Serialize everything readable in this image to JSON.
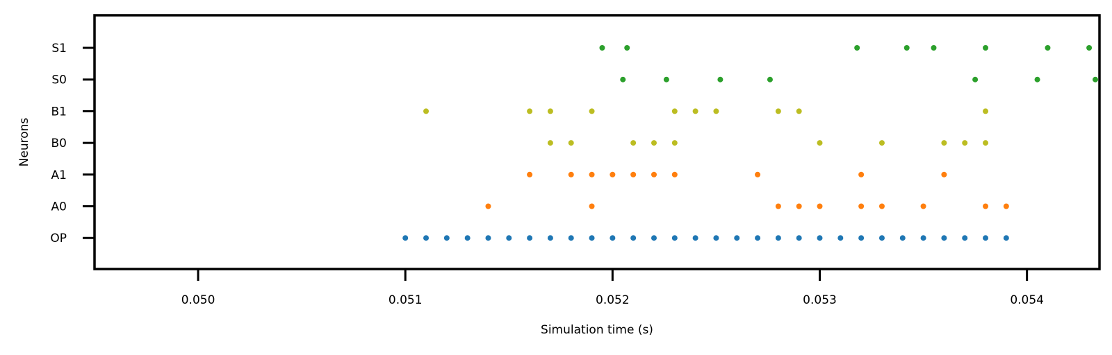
{
  "chart_data": {
    "type": "scatter",
    "title": "",
    "xlabel": "Simulation time (s)",
    "ylabel": "Neurons",
    "xlim": [
      0.0495,
      0.05435
    ],
    "x_ticks": [
      0.05,
      0.051,
      0.052,
      0.053,
      0.054
    ],
    "x_tick_labels": [
      "0.050",
      "0.051",
      "0.052",
      "0.053",
      "0.054"
    ],
    "categories": [
      "OP",
      "A0",
      "A1",
      "B0",
      "B1",
      "S0",
      "S1"
    ],
    "grid": false,
    "legend": "none",
    "series": [
      {
        "category": "OP",
        "color": "#1f77b4",
        "x": [
          0.051,
          0.0511,
          0.0512,
          0.0513,
          0.0514,
          0.0515,
          0.0516,
          0.0517,
          0.0518,
          0.0519,
          0.052,
          0.0521,
          0.0522,
          0.0523,
          0.0524,
          0.0525,
          0.0526,
          0.0527,
          0.0528,
          0.0529,
          0.053,
          0.0531,
          0.0532,
          0.0533,
          0.0534,
          0.0535,
          0.0536,
          0.0537,
          0.0538,
          0.0539
        ]
      },
      {
        "category": "A0",
        "color": "#ff7f0e",
        "x": [
          0.0514,
          0.0519,
          0.0528,
          0.0529,
          0.053,
          0.0532,
          0.0533,
          0.0535,
          0.0538,
          0.0539
        ]
      },
      {
        "category": "A1",
        "color": "#ff7f0e",
        "x": [
          0.0516,
          0.0518,
          0.0519,
          0.052,
          0.0521,
          0.0522,
          0.0523,
          0.0527,
          0.0532,
          0.0536
        ]
      },
      {
        "category": "B0",
        "color": "#bcbd22",
        "x": [
          0.0517,
          0.0518,
          0.0521,
          0.0522,
          0.0523,
          0.053,
          0.0533,
          0.0536,
          0.0537,
          0.0538
        ]
      },
      {
        "category": "B1",
        "color": "#bcbd22",
        "x": [
          0.0511,
          0.0516,
          0.0517,
          0.0519,
          0.0523,
          0.0524,
          0.0525,
          0.0528,
          0.0529,
          0.0538
        ]
      },
      {
        "category": "S0",
        "color": "#2ca02c",
        "x": [
          0.05205,
          0.05226,
          0.05252,
          0.05276,
          0.05375,
          0.05405,
          0.05433
        ]
      },
      {
        "category": "S1",
        "color": "#2ca02c",
        "x": [
          0.05195,
          0.05207,
          0.05318,
          0.05342,
          0.05355,
          0.0538,
          0.0541,
          0.0543
        ]
      }
    ]
  }
}
